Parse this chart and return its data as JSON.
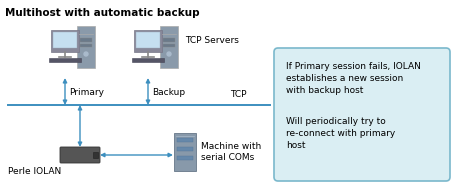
{
  "title": "Multihost with automatic backup",
  "title_fontsize": 7.5,
  "title_fontweight": "bold",
  "bg_color": "#ffffff",
  "box_bg": "#daeef3",
  "box_border": "#7ab8cc",
  "arrow_color": "#3d8fbf",
  "line_color": "#3d8fbf",
  "text_color": "#000000",
  "note_lines_1": "If Primary session fails, IOLAN\nestablishes a new session\nwith backup host",
  "note_lines_2": "Will periodically try to\nre-connect with primary\nhost",
  "label_primary": "Primary",
  "label_backup": "Backup",
  "label_tcp": "TCP",
  "label_tcp_servers": "TCP Servers",
  "label_iolan": "Perle IOLAN",
  "label_machine": "Machine with\nserial COMs",
  "monitor_color": "#b8d4e8",
  "monitor_screen": "#c5dff0",
  "tower_color": "#8a9aaa",
  "tower_dark": "#6a7a8a",
  "iolan_color": "#555555",
  "machine_color": "#8899aa"
}
